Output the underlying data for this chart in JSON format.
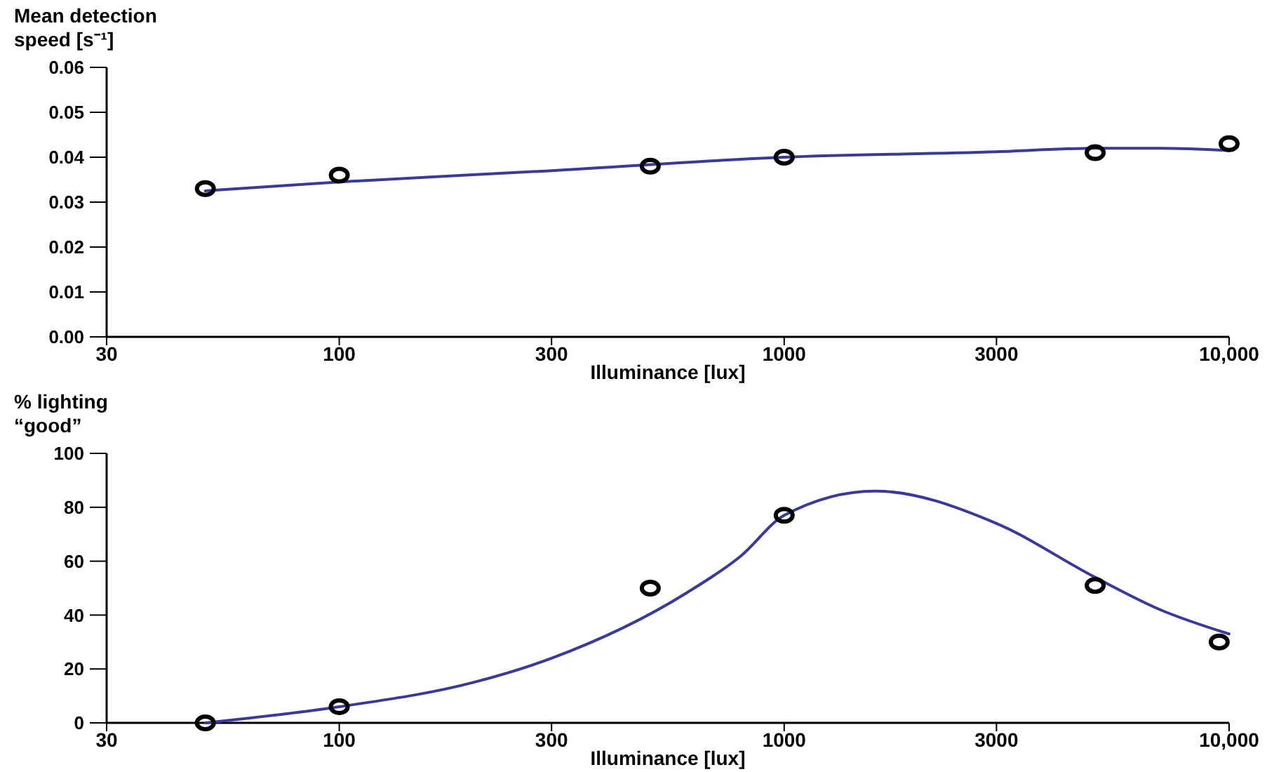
{
  "chart_data": [
    {
      "type": "scatter",
      "ylabel": "Mean detection speed [s⁻¹]",
      "xlabel": "Illuminance [lux]",
      "log": "x",
      "xlim": [
        30,
        10000
      ],
      "xticks": [
        30,
        100,
        300,
        1000,
        3000,
        {
          "value": 10000,
          "label": "10,000"
        }
      ],
      "ylim": [
        0,
        0.06
      ],
      "yticks": [
        {
          "value": 0,
          "label": "0.00"
        },
        {
          "value": 0.01,
          "label": "0.01"
        },
        {
          "value": 0.02,
          "label": "0.02"
        },
        {
          "value": 0.03,
          "label": "0.03"
        },
        {
          "value": 0.04,
          "label": "0.04"
        },
        {
          "value": 0.05,
          "label": "0.05"
        },
        {
          "value": 0.06,
          "label": "0.06"
        }
      ],
      "series": [
        {
          "type": "line",
          "color": "#3a3a9a",
          "marker": "none",
          "line_style": "solid",
          "x": [
            50,
            100,
            300,
            1000,
            3000,
            5000,
            7000,
            10000
          ],
          "values": [
            0.0325,
            0.0345,
            0.037,
            0.04,
            0.0412,
            0.042,
            0.042,
            0.0415
          ]
        },
        {
          "color": "#000000",
          "marker": "circle",
          "x": [
            50,
            100,
            500,
            1000,
            5000,
            10000
          ],
          "values": [
            0.033,
            0.036,
            0.038,
            0.04,
            0.041,
            0.043
          ]
        }
      ]
    },
    {
      "type": "scatter",
      "ylabel": "% lighting “good”",
      "xlabel": "Illuminance [lux]",
      "log": "x",
      "xlim": [
        30,
        10000
      ],
      "xticks": [
        30,
        100,
        300,
        1000,
        3000,
        {
          "value": 10000,
          "label": "10,000"
        }
      ],
      "ylim": [
        0,
        100
      ],
      "yticks": [
        0,
        20,
        40,
        60,
        80,
        100
      ],
      "series": [
        {
          "type": "line",
          "color": "#3a3a9a",
          "marker": "none",
          "line_style": "solid",
          "x": [
            50,
            100,
            200,
            300,
            600,
            800,
            1000,
            1600,
            3000,
            5000,
            7000,
            10000
          ],
          "values": [
            0,
            6,
            15,
            24,
            48,
            62,
            77,
            86,
            74,
            54,
            42,
            33
          ]
        },
        {
          "color": "#000000",
          "marker": "circle",
          "x": [
            50,
            100,
            500,
            1000,
            5000,
            9500
          ],
          "values": [
            0,
            6,
            50,
            77,
            51,
            30
          ]
        }
      ]
    }
  ]
}
